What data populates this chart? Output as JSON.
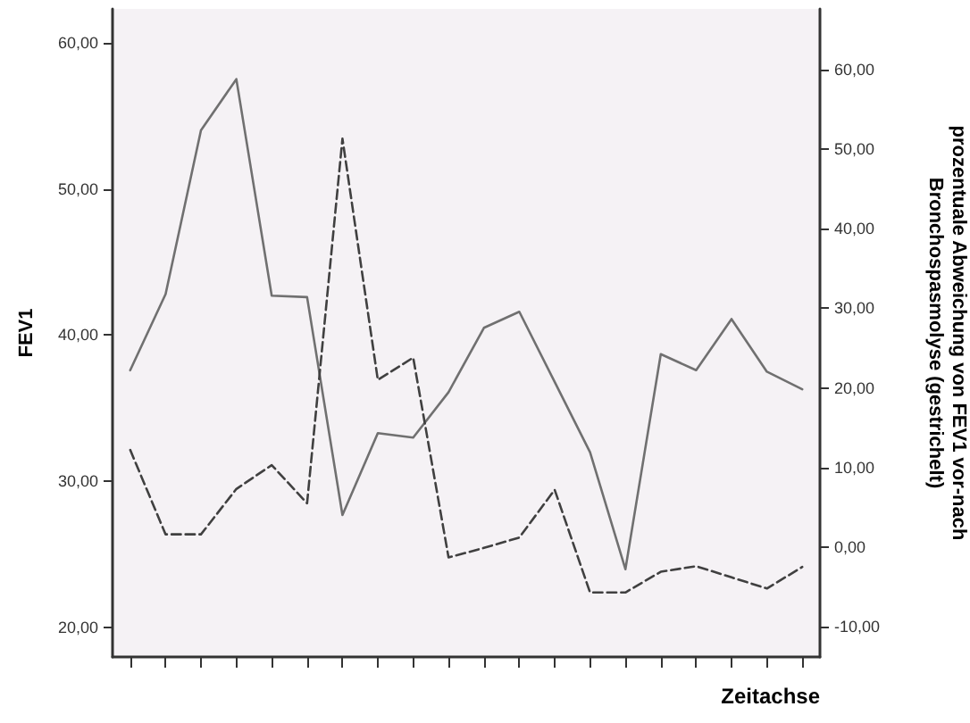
{
  "chart_data": {
    "type": "line",
    "xlabel": "Zeitachse",
    "ylabel": "FEV1",
    "y2label": "prozentuale Abweichung von FEV1 vor-nach Bronchospasmolyse (gestrichelt)",
    "categories": [
      null,
      null,
      null,
      null,
      null,
      null,
      null,
      null,
      null,
      null,
      null,
      null,
      null,
      null,
      null,
      null,
      null,
      null,
      null,
      null
    ],
    "series": [
      {
        "color": "#707070",
        "line_style": "solid",
        "values": [
          37.6,
          42.8,
          54.0,
          57.5,
          42.7,
          42.6,
          27.7,
          33.3,
          33.0,
          36.1,
          40.5,
          41.6,
          36.8,
          32.0,
          24.0,
          38.7,
          37.6,
          41.1,
          37.5,
          36.3
        ]
      },
      {
        "color": "#404040",
        "line_style": "dashed",
        "axis": "y2",
        "values": [
          12.2,
          1.6,
          1.6,
          7.3,
          10.3,
          5.5,
          51.3,
          21.0,
          23.8,
          -1.3,
          -0.1,
          1.2,
          7.2,
          -5.7,
          -5.7,
          -3.1,
          -2.4,
          -3.8,
          -5.2,
          -2.5
        ]
      }
    ],
    "ylim": [
      18,
      62.3
    ],
    "yticks": [
      {
        "value": 20,
        "label": "20,00"
      },
      {
        "value": 30,
        "label": "30,00"
      },
      {
        "value": 40,
        "label": "40,00"
      },
      {
        "value": 50,
        "label": "50,00"
      },
      {
        "value": 60,
        "label": "60,00"
      }
    ],
    "y2lim": [
      -13.8,
      67.6
    ],
    "y2ticks": [
      {
        "value": -10,
        "label": "-10,00"
      },
      {
        "value": 0,
        "label": "0,00"
      },
      {
        "value": 10,
        "label": "10,00"
      },
      {
        "value": 20,
        "label": "20,00"
      },
      {
        "value": 30,
        "label": "30,00"
      },
      {
        "value": 40,
        "label": "40,00"
      },
      {
        "value": 50,
        "label": "50,00"
      },
      {
        "value": 60,
        "label": "60,00"
      }
    ],
    "grid": false,
    "marker": "none"
  }
}
